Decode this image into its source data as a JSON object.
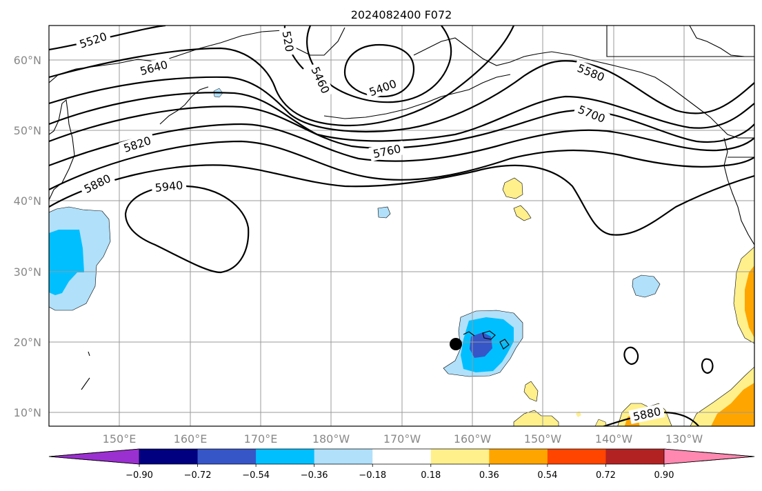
{
  "title": "2024082400 F072",
  "lat_labels": [
    "60°N",
    "50°N",
    "40°N",
    "30°N",
    "20°N",
    "10°N"
  ],
  "lon_labels": [
    "150°E",
    "160°E",
    "170°E",
    "180°W",
    "170°W",
    "160°W",
    "150°W",
    "140°W",
    "130°W"
  ],
  "contour_labels": [
    "5520",
    "5640",
    "5820",
    "5880",
    "5940",
    "5760",
    "5460",
    "520",
    "5400",
    "5580",
    "5700",
    "5880"
  ],
  "colorbar": {
    "ticks": [
      "−0.90",
      "−0.72",
      "−0.54",
      "−0.36",
      "−0.18",
      "0.18",
      "0.36",
      "0.54",
      "0.72",
      "0.90"
    ],
    "colors": [
      "#9b30d0",
      "#000080",
      "#3656c8",
      "#00bfff",
      "#b0e0fa",
      "#ffffff",
      "#fff08c",
      "#ffa500",
      "#ff4500",
      "#b22222",
      "#ff88b0"
    ]
  }
}
